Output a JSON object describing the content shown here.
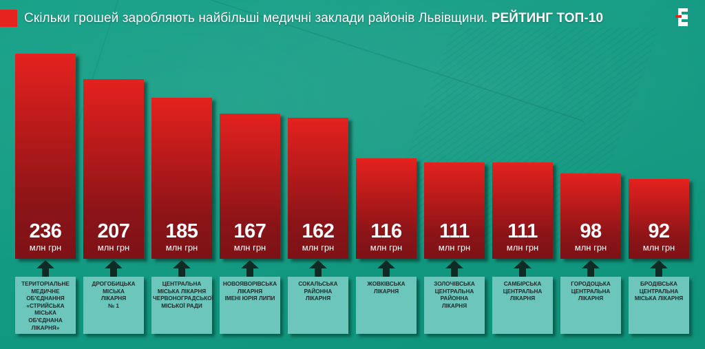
{
  "header": {
    "title_regular": "Скільки грошей заробляють найбільші медичні заклади районів Львівщини. ",
    "title_bold": "РЕЙТИНГ ТОП-10",
    "accent_color": "#e52420",
    "logo": "E"
  },
  "unit_label": "млн грн",
  "colors": {
    "background": "#139a82",
    "bar_top": "#e4221f",
    "bar_bottom": "#7d1216",
    "label_box": "#6cc6bb",
    "arrow": "#0f2b24"
  },
  "bars": [
    {
      "value": "236",
      "unit": "млн грн",
      "label": "Територіальне\nмедичне\nоб'єднання\n«Стрийська\nміська\nоб'єднана\nлікарня»"
    },
    {
      "value": "207",
      "unit": "млн грн",
      "label": "Дрогобицька\nміська\nлікарня\n№ 1"
    },
    {
      "value": "185",
      "unit": "млн грн",
      "label": "Центральна\nміська лікарня\nЧервоноградської\nміської ради"
    },
    {
      "value": "167",
      "unit": "млн грн",
      "label": "Новояворівська\nлікарня\nімені Юрія Липи"
    },
    {
      "value": "162",
      "unit": "млн грн",
      "label": "Сокальська\nрайонна\nлікарня"
    },
    {
      "value": "116",
      "unit": "млн грн",
      "label": "Жовківська\nлікарня"
    },
    {
      "value": "111",
      "unit": "млн грн",
      "label": "Золочівська\nцентральна\nрайонна\nлікарня"
    },
    {
      "value": "111",
      "unit": "млн грн",
      "label": "Самбірська\nцентральна\nлікарня"
    },
    {
      "value": "98",
      "unit": "млн грн",
      "label": "Городоцька\nцентральна\nлікарня"
    },
    {
      "value": "92",
      "unit": "млн грн",
      "label": "Бродівська\nцентральна\nміська лікарня"
    }
  ],
  "chart_data": {
    "type": "bar",
    "title": "Скільки грошей заробляють найбільші медичні заклади районів Львівщини. РЕЙТИНГ ТОП-10",
    "xlabel": "",
    "ylabel": "млн грн",
    "categories": [
      "Територіальне медичне об'єднання «Стрийська міська об'єднана лікарня»",
      "Дрогобицька міська лікарня № 1",
      "Центральна міська лікарня Червоноградської міської ради",
      "Новояворівська лікарня імені Юрія Липи",
      "Сокальська районна лікарня",
      "Жовківська лікарня",
      "Золочівська центральна районна лікарня",
      "Самбірська центральна лікарня",
      "Городоцька центральна лікарня",
      "Бродівська центральна міська лікарня"
    ],
    "values": [
      236,
      207,
      185,
      167,
      162,
      116,
      111,
      111,
      98,
      92
    ],
    "unit": "млн грн",
    "ylim": [
      0,
      236
    ],
    "grid": false,
    "legend": "none"
  }
}
